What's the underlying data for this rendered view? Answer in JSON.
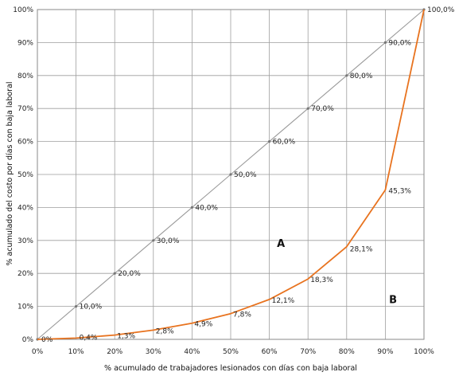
{
  "chart_data": {
    "type": "line",
    "xlabel": "% acumulado de trabajadores lesionados con días con baja laboral",
    "ylabel": "% acumulado del costo por días con baja laboral",
    "xlim": [
      0,
      100
    ],
    "ylim": [
      0,
      100
    ],
    "x_ticks": [
      "0%",
      "10%",
      "20%",
      "30%",
      "40%",
      "50%",
      "60%",
      "70%",
      "80%",
      "90%",
      "100%"
    ],
    "y_ticks": [
      "0%",
      "10%",
      "20%",
      "30%",
      "40%",
      "50%",
      "60%",
      "70%",
      "80%",
      "90%",
      "100%"
    ],
    "grid": true,
    "legend": "none",
    "series": [
      {
        "color": "#9a9a9a",
        "points": [
          {
            "x": 0,
            "y": 0,
            "label": "0%"
          },
          {
            "x": 10,
            "y": 10,
            "label": "10,0%"
          },
          {
            "x": 20,
            "y": 20,
            "label": "20,0%"
          },
          {
            "x": 30,
            "y": 30,
            "label": "30,0%"
          },
          {
            "x": 40,
            "y": 40,
            "label": "40,0%"
          },
          {
            "x": 50,
            "y": 50,
            "label": "50,0%"
          },
          {
            "x": 60,
            "y": 60,
            "label": "60,0%"
          },
          {
            "x": 70,
            "y": 70,
            "label": "70,0%"
          },
          {
            "x": 80,
            "y": 80,
            "label": "80,0%"
          },
          {
            "x": 90,
            "y": 90,
            "label": "90,0%"
          },
          {
            "x": 100,
            "y": 100,
            "label": "100,0%"
          }
        ]
      },
      {
        "color": "#e8731f",
        "points": [
          {
            "x": 0,
            "y": 0
          },
          {
            "x": 10,
            "y": 0.4,
            "label": "0,4%"
          },
          {
            "x": 20,
            "y": 1.3,
            "label": "1,3%"
          },
          {
            "x": 30,
            "y": 2.8,
            "label": "2,8%"
          },
          {
            "x": 40,
            "y": 4.9,
            "label": "4,9%"
          },
          {
            "x": 50,
            "y": 7.8,
            "label": "7,8%"
          },
          {
            "x": 60,
            "y": 12.1,
            "label": "12,1%"
          },
          {
            "x": 70,
            "y": 18.3,
            "label": "18,3%"
          },
          {
            "x": 80,
            "y": 28.1,
            "label": "28,1%"
          },
          {
            "x": 90,
            "y": 45.3,
            "label": "45,3%"
          },
          {
            "x": 100,
            "y": 100
          }
        ]
      }
    ],
    "annotations": [
      {
        "text": "A",
        "x": 63,
        "y": 28
      },
      {
        "text": "B",
        "x": 92,
        "y": 11
      }
    ]
  }
}
